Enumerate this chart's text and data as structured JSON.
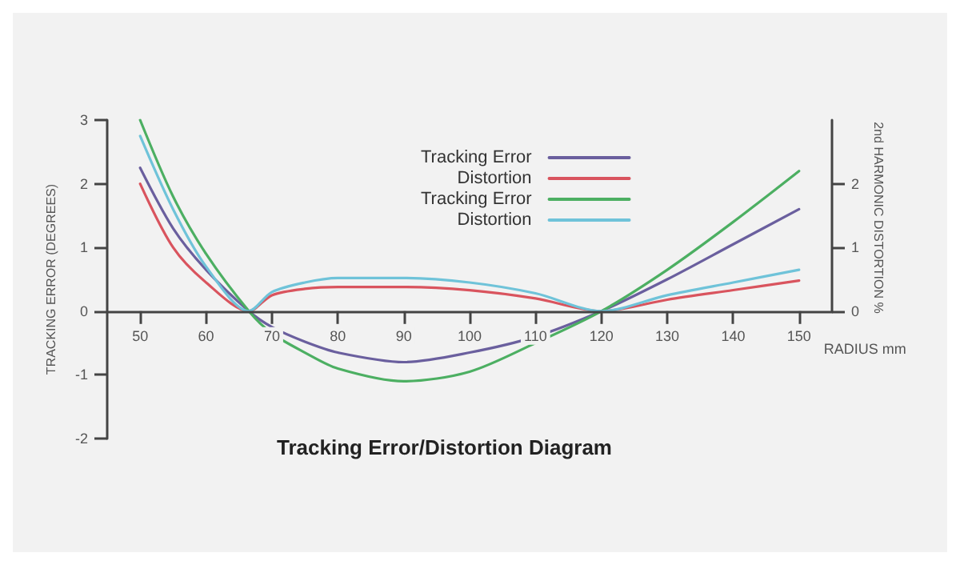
{
  "chart_data": {
    "type": "line",
    "title": "Tracking Error/Distortion Diagram",
    "xlabel": "RADIUS mm",
    "ylabel": "TRACKING ERROR (DEGREES)",
    "y2label": "2nd HARMONIC DISTORTION %",
    "x": [
      50,
      55,
      60,
      66.5,
      70,
      75,
      80,
      90,
      100,
      110,
      120,
      130,
      140,
      150
    ],
    "series": [
      {
        "name": "Tracking Error",
        "color": "#6a5f9e",
        "values": [
          2.25,
          1.3,
          0.65,
          0,
          -0.25,
          -0.48,
          -0.65,
          -0.8,
          -0.65,
          -0.4,
          0,
          0.5,
          1.05,
          1.6
        ]
      },
      {
        "name": "Distortion",
        "color": "#d9545e",
        "values": [
          2.0,
          1.0,
          0.45,
          0,
          0.25,
          0.35,
          0.38,
          0.38,
          0.33,
          0.2,
          0,
          0.18,
          0.33,
          0.48
        ]
      },
      {
        "name": "Tracking Error",
        "color": "#4caf62",
        "values": [
          3.0,
          1.8,
          0.9,
          0,
          -0.35,
          -0.65,
          -0.9,
          -1.1,
          -0.95,
          -0.5,
          0,
          0.65,
          1.4,
          2.2
        ]
      },
      {
        "name": "Distortion",
        "color": "#6fc3d9",
        "values": [
          2.75,
          1.6,
          0.7,
          0,
          0.3,
          0.45,
          0.52,
          0.52,
          0.45,
          0.28,
          0,
          0.25,
          0.45,
          0.65
        ]
      }
    ],
    "xlim": [
      45,
      155
    ],
    "xticks": [
      50,
      60,
      70,
      80,
      90,
      100,
      110,
      120,
      130,
      140,
      150
    ],
    "ylim": [
      -2,
      3
    ],
    "yticks": [
      -2,
      -1,
      0,
      1,
      2,
      3
    ],
    "y2lim": [
      0,
      3
    ],
    "y2ticks": [
      0,
      1,
      2
    ],
    "grid": false,
    "legend": "top",
    "marker": "none",
    "line_style": "solid"
  }
}
